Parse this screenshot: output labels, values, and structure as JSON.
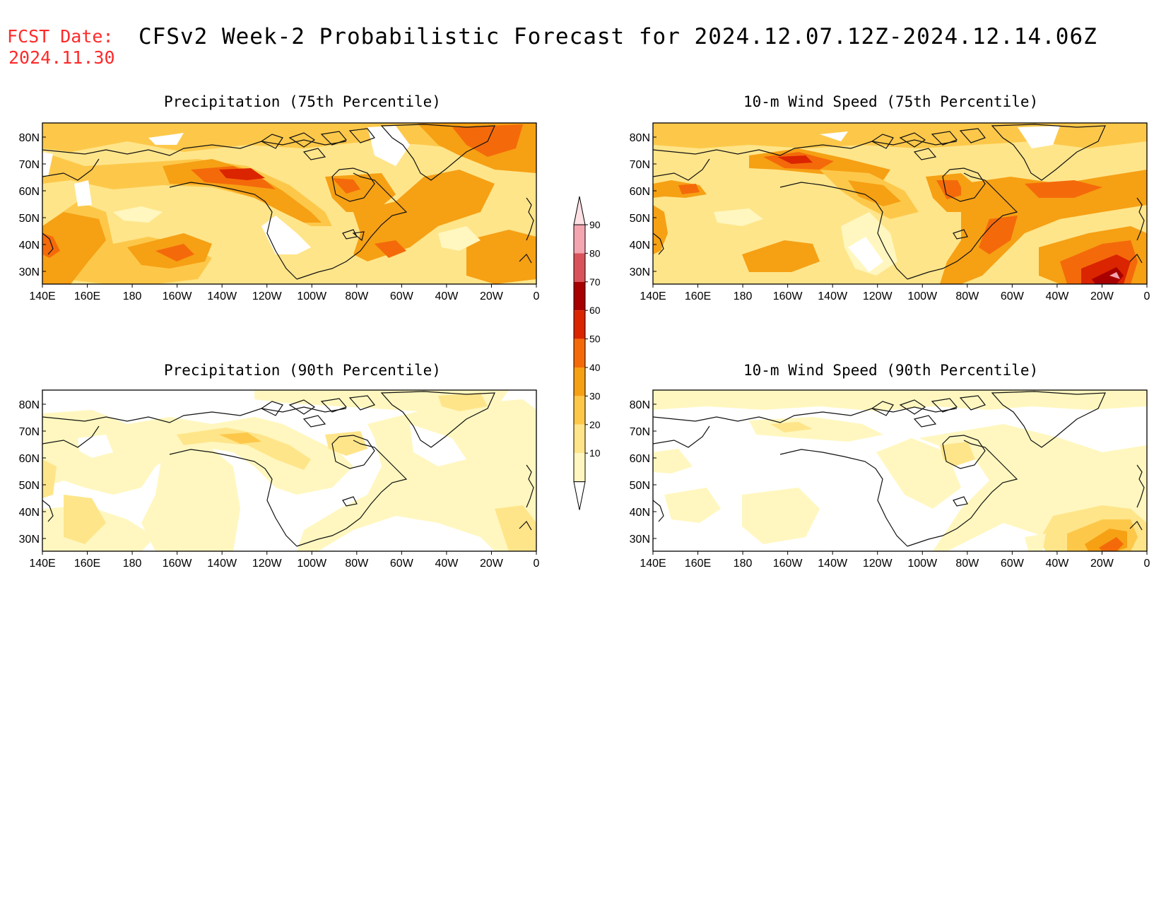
{
  "header": {
    "fcst_label": "FCST Date:",
    "fcst_date": "2024.11.30",
    "title": "CFSv2 Week-2 Probabilistic Forecast for 2024.12.07.12Z-2024.12.14.06Z"
  },
  "panels": [
    {
      "title": "Precipitation (75th Percentile)"
    },
    {
      "title": "10-m Wind Speed (75th Percentile)"
    },
    {
      "title": "Precipitation (90th Percentile)"
    },
    {
      "title": "10-m Wind Speed (90th Percentile)"
    }
  ],
  "axes": {
    "lon_labels": [
      "140E",
      "160E",
      "180",
      "160W",
      "140W",
      "120W",
      "100W",
      "80W",
      "60W",
      "40W",
      "20W",
      "0"
    ],
    "lat_labels": [
      "80N",
      "70N",
      "60N",
      "50N",
      "40N",
      "30N"
    ]
  },
  "colorbar": {
    "levels": [
      "10",
      "20",
      "30",
      "40",
      "50",
      "60",
      "70",
      "80",
      "90"
    ],
    "colors": [
      "#fff7bf",
      "#ffe58a",
      "#fdc84a",
      "#f6a014",
      "#f46a0a",
      "#db2400",
      "#a80000",
      "#d9535a",
      "#f3a6b0"
    ]
  }
}
